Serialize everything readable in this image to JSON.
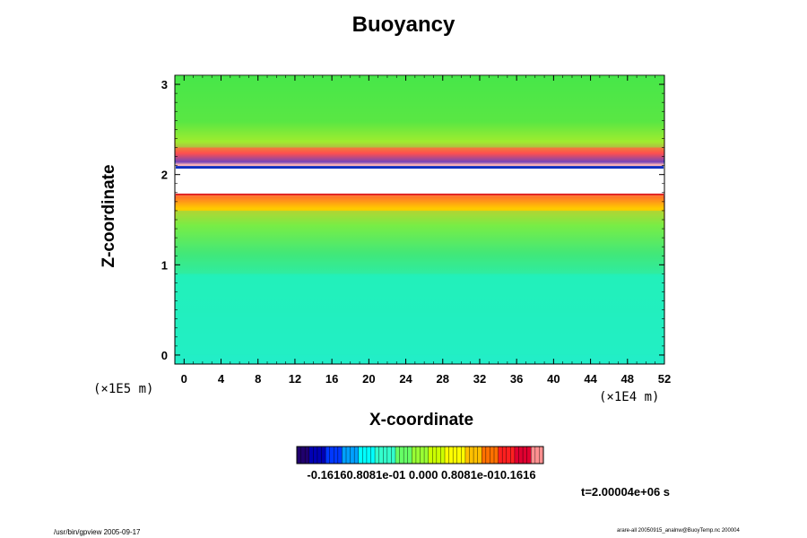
{
  "chart_data": {
    "type": "heatmap",
    "title": "Buoyancy",
    "xlabel": "X-coordinate",
    "ylabel": "Z-coordinate",
    "x_unit": "(×1E4 m)",
    "y_unit": "(×1E5 m)",
    "xlim": [
      -1,
      52
    ],
    "ylim": [
      -0.1,
      3.1
    ],
    "x_ticks": [
      "0",
      "4",
      "8",
      "12",
      "16",
      "20",
      "24",
      "28",
      "32",
      "36",
      "40",
      "44",
      "48",
      "52"
    ],
    "y_ticks": [
      "0",
      "1",
      "2",
      "3"
    ],
    "colorbar": {
      "range": [
        -0.1616,
        0.1616
      ],
      "tick_labels_text": "-0.16160.8081e-01 0.000 0.8081e-010.1616",
      "colors": [
        "#20006e",
        "#0000b4",
        "#0038ff",
        "#00a0ff",
        "#00ffff",
        "#33ffcc",
        "#66ff66",
        "#99ff33",
        "#ccff00",
        "#ffff00",
        "#ffc000",
        "#ff7000",
        "#ff2020",
        "#e00030",
        "#ff9090"
      ]
    },
    "bands": [
      {
        "z_min": 0.0,
        "z_max": 0.9,
        "level": "slightly negative",
        "color": "#22f0c0"
      },
      {
        "z_min": 0.9,
        "z_max": 1.6,
        "level": "near zero",
        "color": "#3de88c"
      },
      {
        "z_min": 1.6,
        "z_max": 1.78,
        "level": "positive",
        "color": "#ffd400"
      },
      {
        "z_min": 1.78,
        "z_max": 2.08,
        "level": "out of range",
        "color": "#ffffff"
      },
      {
        "z_min": 2.08,
        "z_max": 2.3,
        "level": "strong positive/negative",
        "color": "#ff3030"
      },
      {
        "z_min": 2.3,
        "z_max": 3.1,
        "level": "near zero",
        "color": "#4ce64a"
      }
    ],
    "time_label": "t=2.00004e+06 s"
  },
  "footer": {
    "left": "/usr/bin/gpview 2005-09-17",
    "right": "arare-all 20050915_analnw@BuoyTemp.nc 200004"
  }
}
